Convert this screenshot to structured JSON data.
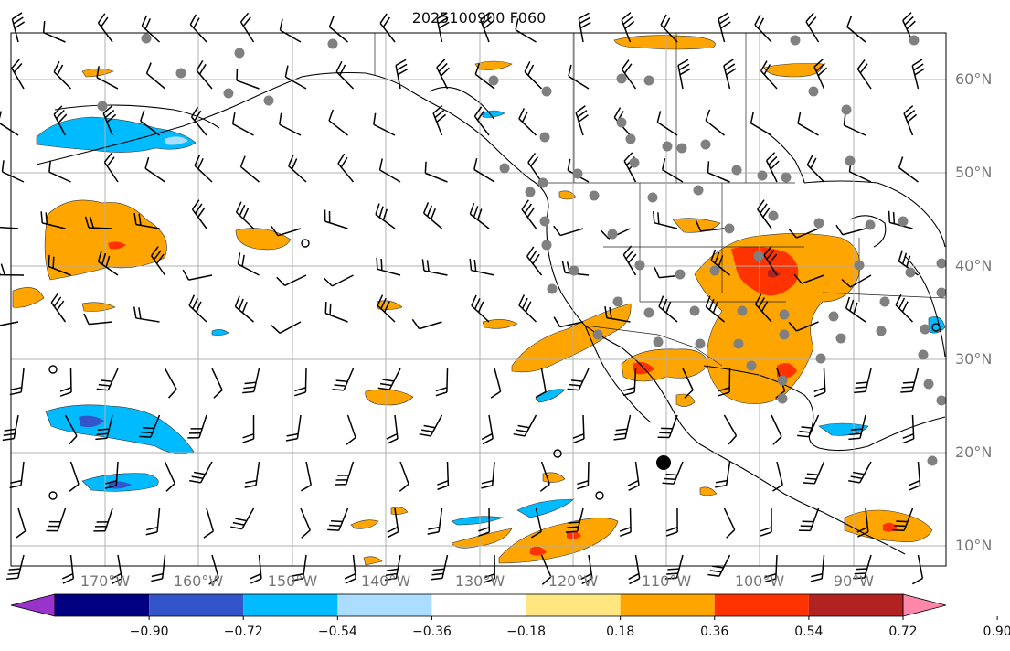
{
  "title": "2025100900 F060",
  "lat_labels": [
    "60°N",
    "50°N",
    "40°N",
    "30°N",
    "20°N",
    "10°N"
  ],
  "lon_labels": [
    "170°W",
    "160°W",
    "150°W",
    "140°W",
    "130°W",
    "120°W",
    "110°W",
    "100°W",
    "90°W"
  ],
  "colorbar": {
    "ticks": [
      "−0.90",
      "−0.72",
      "−0.54",
      "−0.36",
      "−0.18",
      "0.18",
      "0.36",
      "0.54",
      "0.72",
      "0.90"
    ],
    "colors": [
      "#9933cc",
      "#000080",
      "#3355cc",
      "#00bbff",
      "#aaddff",
      "#ffffff",
      "#ffe680",
      "#ffa500",
      "#ff3300",
      "#b22222",
      "#ff88aa"
    ]
  },
  "colors": {
    "orange": "#ffa500",
    "red_orange": "#ff3300",
    "dark_red": "#b22222",
    "cyan": "#00bbff",
    "light_blue": "#aaddff",
    "blue": "#3355cc",
    "station_dot": "#808080",
    "grid": "#b0b0b0"
  }
}
